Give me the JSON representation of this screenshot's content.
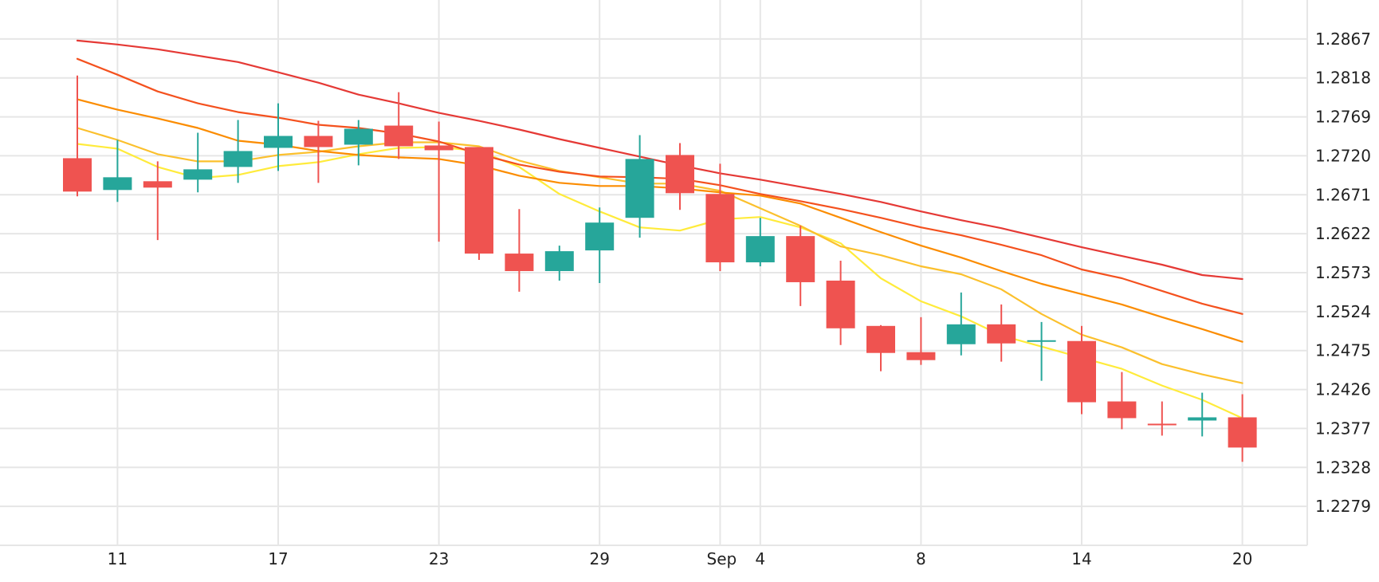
{
  "chart_data": {
    "type": "candlestick",
    "title": "",
    "xlabel": "",
    "ylabel": "",
    "ylim": [
      1.223,
      1.2916
    ],
    "colors": {
      "up": "#26a69a",
      "down": "#ef5350",
      "grid": "#e6e6e6",
      "text": "#222222"
    },
    "y_ticks": [
      "1.2867",
      "1.2818",
      "1.2769",
      "1.2720",
      "1.2671",
      "1.2622",
      "1.2573",
      "1.2524",
      "1.2475",
      "1.2426",
      "1.2377",
      "1.2328",
      "1.2279"
    ],
    "x_ticks": [
      {
        "label": "11",
        "index": 1
      },
      {
        "label": "17",
        "index": 5
      },
      {
        "label": "23",
        "index": 9
      },
      {
        "label": "29",
        "index": 13
      },
      {
        "label": "Sep",
        "index": 16
      },
      {
        "label": "4",
        "index": 17
      },
      {
        "label": "8",
        "index": 21
      },
      {
        "label": "14",
        "index": 25
      },
      {
        "label": "20",
        "index": 29
      }
    ],
    "candles": [
      {
        "open": 1.2717,
        "high": 1.2821,
        "low": 1.2669,
        "close": 1.2675
      },
      {
        "open": 1.2677,
        "high": 1.274,
        "low": 1.2662,
        "close": 1.2693
      },
      {
        "open": 1.2688,
        "high": 1.2713,
        "low": 1.2614,
        "close": 1.268
      },
      {
        "open": 1.269,
        "high": 1.2749,
        "low": 1.2674,
        "close": 1.2703
      },
      {
        "open": 1.2706,
        "high": 1.2765,
        "low": 1.2686,
        "close": 1.2726
      },
      {
        "open": 1.273,
        "high": 1.2786,
        "low": 1.2701,
        "close": 1.2745
      },
      {
        "open": 1.2745,
        "high": 1.2764,
        "low": 1.2686,
        "close": 1.2731
      },
      {
        "open": 1.2734,
        "high": 1.2765,
        "low": 1.2708,
        "close": 1.2754
      },
      {
        "open": 1.2758,
        "high": 1.28,
        "low": 1.2716,
        "close": 1.2732
      },
      {
        "open": 1.2733,
        "high": 1.2763,
        "low": 1.2612,
        "close": 1.2727
      },
      {
        "open": 1.2731,
        "high": 1.2731,
        "low": 1.2589,
        "close": 1.2597
      },
      {
        "open": 1.2597,
        "high": 1.2653,
        "low": 1.2549,
        "close": 1.2575
      },
      {
        "open": 1.2575,
        "high": 1.2607,
        "low": 1.2563,
        "close": 1.26
      },
      {
        "open": 1.2601,
        "high": 1.2655,
        "low": 1.256,
        "close": 1.2636
      },
      {
        "open": 1.2642,
        "high": 1.2746,
        "low": 1.2617,
        "close": 1.2716
      },
      {
        "open": 1.2721,
        "high": 1.2736,
        "low": 1.2652,
        "close": 1.2673
      },
      {
        "open": 1.2672,
        "high": 1.271,
        "low": 1.2575,
        "close": 1.2586
      },
      {
        "open": 1.2586,
        "high": 1.2642,
        "low": 1.2581,
        "close": 1.2619
      },
      {
        "open": 1.2619,
        "high": 1.2632,
        "low": 1.2531,
        "close": 1.2561
      },
      {
        "open": 1.2563,
        "high": 1.2588,
        "low": 1.2482,
        "close": 1.2503
      },
      {
        "open": 1.2506,
        "high": 1.2507,
        "low": 1.2449,
        "close": 1.2472
      },
      {
        "open": 1.2473,
        "high": 1.2517,
        "low": 1.2457,
        "close": 1.2463
      },
      {
        "open": 1.2483,
        "high": 1.2548,
        "low": 1.2469,
        "close": 1.2508
      },
      {
        "open": 1.2508,
        "high": 1.2533,
        "low": 1.2461,
        "close": 1.2484
      },
      {
        "open": 1.2486,
        "high": 1.2511,
        "low": 1.2437,
        "close": 1.2488
      },
      {
        "open": 1.2487,
        "high": 1.2506,
        "low": 1.2395,
        "close": 1.241
      },
      {
        "open": 1.2411,
        "high": 1.2448,
        "low": 1.2376,
        "close": 1.239
      },
      {
        "open": 1.2383,
        "high": 1.2411,
        "low": 1.2368,
        "close": 1.2381
      },
      {
        "open": 1.2387,
        "high": 1.2422,
        "low": 1.2367,
        "close": 1.2391
      },
      {
        "open": 1.2391,
        "high": 1.242,
        "low": 1.2335,
        "close": 1.2353
      }
    ],
    "moving_averages": [
      {
        "color": "#ffeb3b",
        "values": [
          1.2735,
          1.2729,
          1.2706,
          1.2692,
          1.2696,
          1.2707,
          1.2712,
          1.2722,
          1.273,
          1.2731,
          1.2726,
          1.2706,
          1.2672,
          1.265,
          1.263,
          1.2626,
          1.264,
          1.2643,
          1.263,
          1.261,
          1.2566,
          1.2537,
          1.2518,
          1.2494,
          1.248,
          1.2466,
          1.2452,
          1.2431,
          1.2413,
          1.239
        ]
      },
      {
        "color": "#fbc02d",
        "values": [
          1.2755,
          1.274,
          1.2722,
          1.2713,
          1.2713,
          1.2721,
          1.2725,
          1.2732,
          1.2737,
          1.2737,
          1.2732,
          1.2714,
          1.2701,
          1.2693,
          1.2685,
          1.2685,
          1.2676,
          1.2654,
          1.2632,
          1.2606,
          1.2595,
          1.2581,
          1.2571,
          1.2552,
          1.2521,
          1.2495,
          1.2479,
          1.2458,
          1.2445,
          1.2434
        ]
      },
      {
        "color": "#fb8c00",
        "values": [
          1.2791,
          1.2778,
          1.2767,
          1.2755,
          1.2739,
          1.2734,
          1.2726,
          1.2721,
          1.2718,
          1.2716,
          1.2708,
          1.2695,
          1.2686,
          1.2682,
          1.2682,
          1.2679,
          1.2674,
          1.267,
          1.266,
          1.2642,
          1.2624,
          1.2607,
          1.2592,
          1.2575,
          1.2559,
          1.2546,
          1.2533,
          1.2517,
          1.2502,
          1.2486
        ]
      },
      {
        "color": "#f4511e",
        "values": [
          1.2842,
          1.2822,
          1.2801,
          1.2786,
          1.2775,
          1.2768,
          1.2759,
          1.2755,
          1.2748,
          1.2738,
          1.2722,
          1.2709,
          1.27,
          1.2694,
          1.2693,
          1.2691,
          1.2683,
          1.2672,
          1.2663,
          1.2653,
          1.2642,
          1.263,
          1.262,
          1.2608,
          1.2595,
          1.2577,
          1.2566,
          1.255,
          1.2534,
          1.2521
        ]
      },
      {
        "color": "#e53935",
        "values": [
          1.2865,
          1.286,
          1.2854,
          1.2846,
          1.2838,
          1.2825,
          1.2812,
          1.2797,
          1.2786,
          1.2774,
          1.2764,
          1.2753,
          1.2741,
          1.273,
          1.2719,
          1.2708,
          1.2698,
          1.269,
          1.2681,
          1.2672,
          1.2662,
          1.265,
          1.2639,
          1.2629,
          1.2617,
          1.2605,
          1.2594,
          1.2583,
          1.257,
          1.2565
        ]
      }
    ]
  }
}
